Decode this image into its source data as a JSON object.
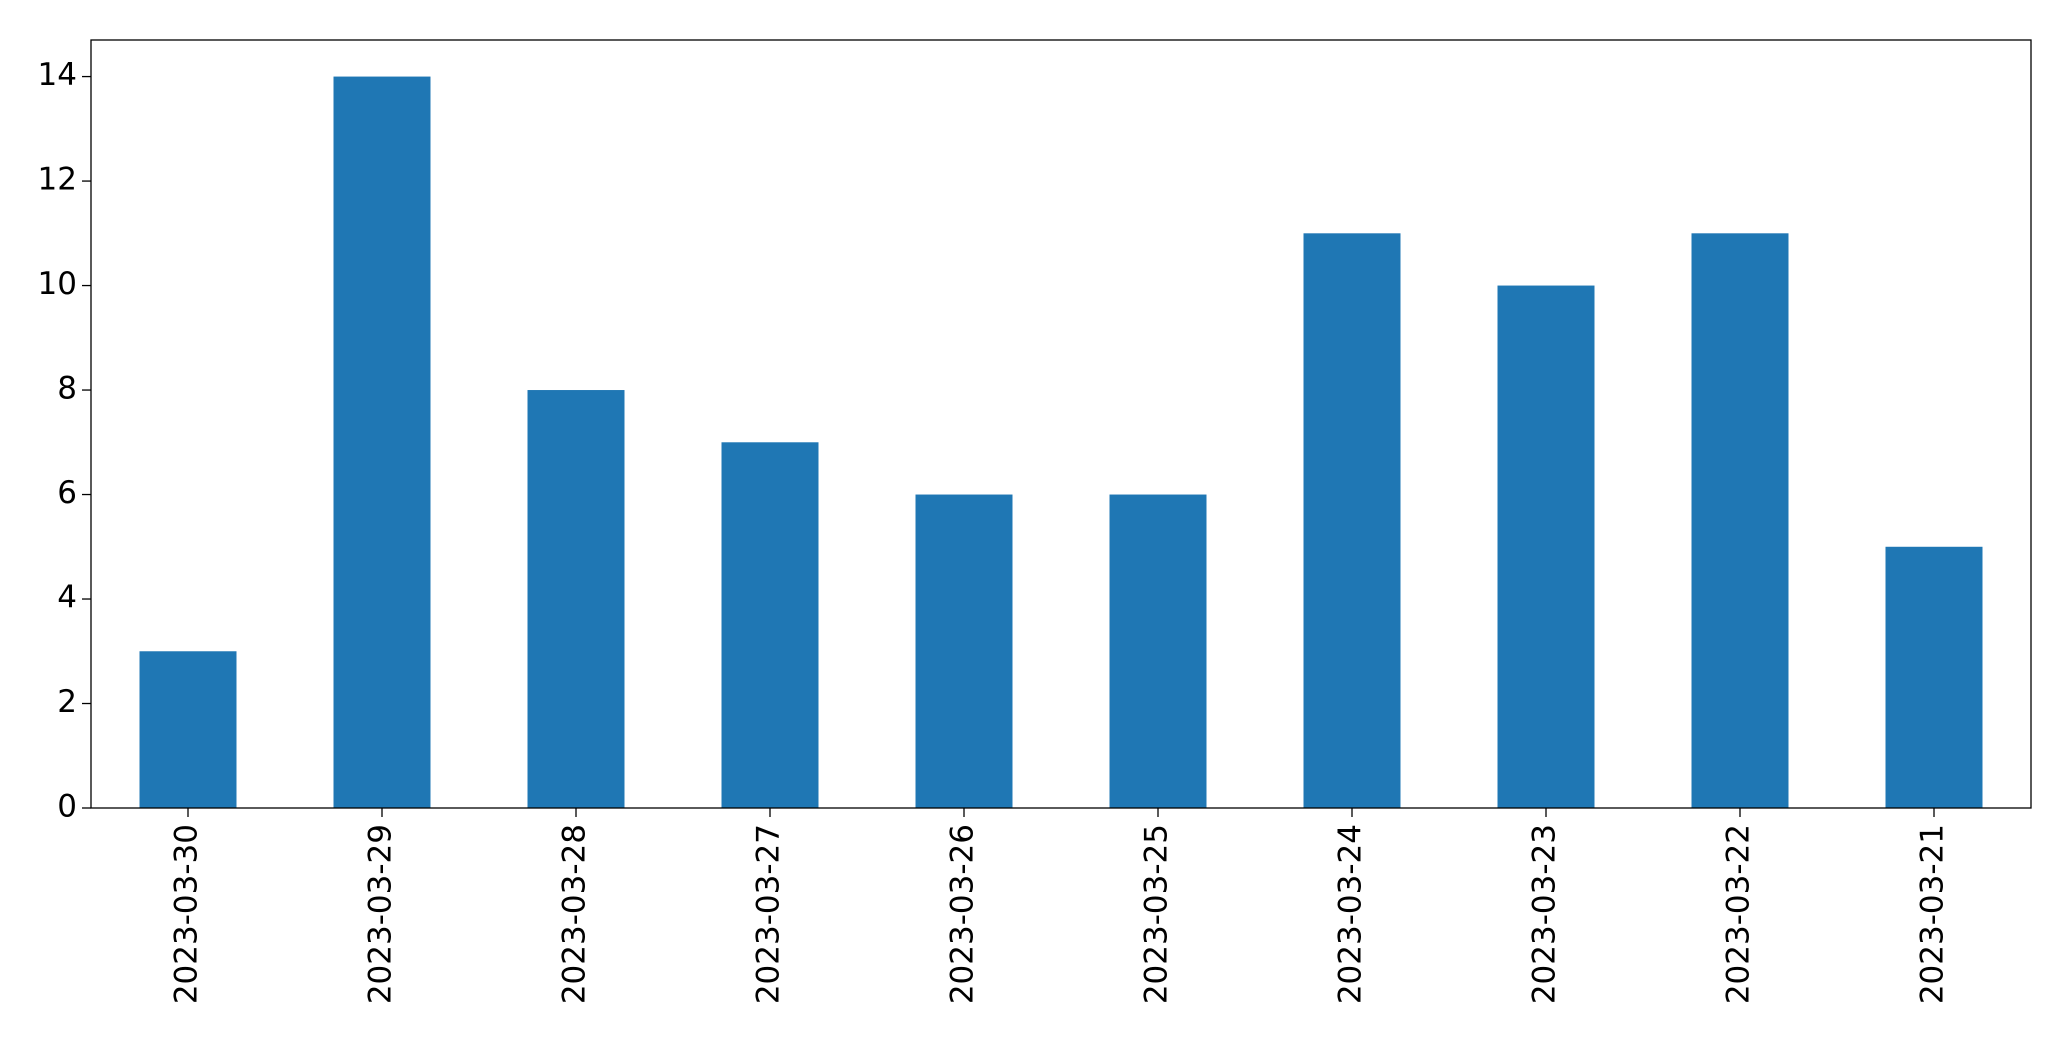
{
  "chart_data": {
    "type": "bar",
    "categories": [
      "2023-03-30",
      "2023-03-29",
      "2023-03-28",
      "2023-03-27",
      "2023-03-26",
      "2023-03-25",
      "2023-03-24",
      "2023-03-23",
      "2023-03-22",
      "2023-03-21"
    ],
    "values": [
      3,
      14,
      8,
      7,
      6,
      6,
      11,
      10,
      11,
      5
    ],
    "color": "#1f77b4",
    "ylim": [
      0,
      14.7
    ],
    "yticks": [
      0,
      2,
      4,
      6,
      8,
      10,
      12,
      14
    ],
    "grid": false
  }
}
